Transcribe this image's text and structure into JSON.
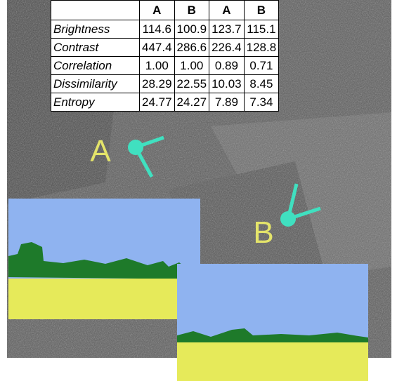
{
  "table": {
    "header": [
      "A",
      "B",
      "A",
      "B"
    ],
    "rows": [
      [
        "Brightness",
        "114.6",
        "100.9",
        "123.7",
        "115.1"
      ],
      [
        "Contrast",
        "447.4",
        "286.6",
        "226.4",
        "128.8"
      ],
      [
        "Correlation",
        "1.00",
        "1.00",
        "0.89",
        "0.71"
      ],
      [
        "Dissimilarity",
        "28.29",
        "22.55",
        "10.03",
        "8.45"
      ],
      [
        "Entropy",
        "24.77",
        "24.27",
        "7.89",
        "7.34"
      ]
    ]
  },
  "image": {
    "labels": [
      "A",
      "B"
    ]
  }
}
